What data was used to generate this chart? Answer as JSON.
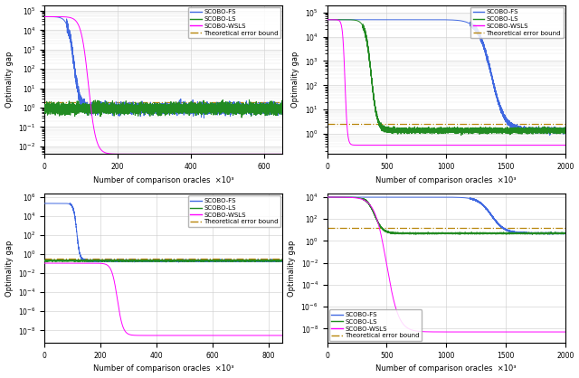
{
  "colors": {
    "fs": "#4169E1",
    "ls": "#228B22",
    "wsls": "#FF00FF",
    "bound": "#B8860B"
  },
  "legend_labels": [
    "SCOBO-FS",
    "SCOBO-LS",
    "SCOBO-WSLS",
    "Theoretical error bound"
  ],
  "xlabel": "Number of comparison oracles  ×10³",
  "ylabel": "Optimality gap"
}
